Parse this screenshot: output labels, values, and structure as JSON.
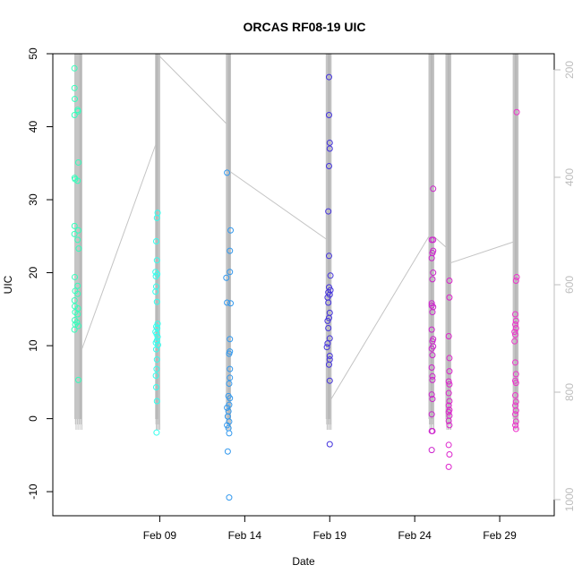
{
  "chart_data": {
    "type": "scatter",
    "title": "ORCAS RF08-19 UIC",
    "xlabel": "Date",
    "ylabel": "UIC",
    "ylim": [
      -13.3,
      50.0
    ],
    "y_ticks": [
      -10,
      0,
      10,
      20,
      30,
      40,
      50
    ],
    "xlim": [
      "2016-02-02T17:00",
      "2016-03-03T05:00"
    ],
    "x_ticks": [
      {
        "date": "2016-02-09",
        "label": "Feb 09"
      },
      {
        "date": "2016-02-14",
        "label": "Feb 14"
      },
      {
        "date": "2016-02-19",
        "label": "Feb 19"
      },
      {
        "date": "2016-02-24",
        "label": "Feb 24"
      },
      {
        "date": "2016-02-29",
        "label": "Feb 29"
      }
    ],
    "right_axis": {
      "label": "",
      "lim": [
        1030,
        170
      ],
      "ticks": [
        200,
        400,
        600,
        800,
        1000
      ],
      "color": "#bdbdbd"
    },
    "grid": false,
    "legend": "none",
    "series": [
      {
        "color": "#33ffbb",
        "flight": {
          "start": "2016-02-04T00:00",
          "end": "2016-02-04T10:00",
          "x_spike": "2016-02-04T08:00"
        },
        "track": [
          [
            "2016-02-04T10:00",
            720
          ],
          [
            "2016-02-08T18:00",
            340
          ]
        ],
        "points": [
          [
            "2016-02-03T23:30",
            48.0
          ],
          [
            "2016-02-03T23:35",
            45.3
          ],
          [
            "2016-02-04T00:00",
            43.8
          ],
          [
            "2016-02-03T23:40",
            41.6
          ],
          [
            "2016-02-04T04:00",
            42.3
          ],
          [
            "2016-02-04T04:30",
            42.1
          ],
          [
            "2016-02-04T05:00",
            35.1
          ],
          [
            "2016-02-03T23:50",
            33.0
          ],
          [
            "2016-02-04T00:30",
            32.8
          ],
          [
            "2016-02-04T04:00",
            32.6
          ],
          [
            "2016-02-03T23:40",
            26.4
          ],
          [
            "2016-02-04T05:00",
            25.8
          ],
          [
            "2016-02-03T23:30",
            25.3
          ],
          [
            "2016-02-04T04:00",
            24.5
          ],
          [
            "2016-02-04T05:30",
            23.3
          ],
          [
            "2016-02-04T00:00",
            19.4
          ],
          [
            "2016-02-04T04:00",
            18.2
          ],
          [
            "2016-02-04T00:30",
            17.5
          ],
          [
            "2016-02-04T04:00",
            17.1
          ],
          [
            "2016-02-03T23:40",
            16.2
          ],
          [
            "2016-02-04T00:00",
            15.4
          ],
          [
            "2016-02-04T04:30",
            15.1
          ],
          [
            "2016-02-04T00:30",
            14.6
          ],
          [
            "2016-02-04T04:00",
            14.3
          ],
          [
            "2016-02-04T00:00",
            13.5
          ],
          [
            "2016-02-04T03:00",
            13.2
          ],
          [
            "2016-02-03T23:30",
            12.2
          ],
          [
            "2016-02-04T05:00",
            12.7
          ],
          [
            "2016-02-04T00:40",
            12.9
          ],
          [
            "2016-02-04T05:00",
            5.3
          ]
        ]
      },
      {
        "color": "#33ffee",
        "flight": {
          "start": "2016-02-08T18:00",
          "end": "2016-02-09T00:00",
          "x_spike": "2016-02-08T20:00"
        },
        "track": [
          [
            "2016-02-09T00:00",
            175
          ],
          [
            "2016-02-12T22:00",
            300
          ]
        ],
        "points": [
          [
            "2016-02-08T21:00",
            28.2
          ],
          [
            "2016-02-08T20:00",
            27.5
          ],
          [
            "2016-02-08T19:00",
            24.3
          ],
          [
            "2016-02-08T20:00",
            21.7
          ],
          [
            "2016-02-08T18:00",
            20.1
          ],
          [
            "2016-02-08T18:30",
            19.5
          ],
          [
            "2016-02-08T20:30",
            19.8
          ],
          [
            "2016-02-08T19:00",
            18.1
          ],
          [
            "2016-02-08T18:00",
            17.4
          ],
          [
            "2016-02-08T20:00",
            16.0
          ],
          [
            "2016-02-08T21:00",
            13.0
          ],
          [
            "2016-02-08T19:00",
            12.6
          ],
          [
            "2016-02-08T20:30",
            12.4
          ],
          [
            "2016-02-08T18:00",
            11.9
          ],
          [
            "2016-02-08T19:30",
            11.6
          ],
          [
            "2016-02-08T21:00",
            11.2
          ],
          [
            "2016-02-08T20:00",
            10.7
          ],
          [
            "2016-02-08T18:30",
            10.4
          ],
          [
            "2016-02-08T21:30",
            10.1
          ],
          [
            "2016-02-08T19:00",
            9.5
          ],
          [
            "2016-02-08T20:00",
            8.1
          ],
          [
            "2016-02-08T19:30",
            6.8
          ],
          [
            "2016-02-08T18:30",
            5.9
          ],
          [
            "2016-02-08T19:00",
            4.3
          ],
          [
            "2016-02-08T20:00",
            2.4
          ],
          [
            "2016-02-08T19:30",
            -1.9
          ]
        ]
      },
      {
        "color": "#3399ee",
        "flight": {
          "start": "2016-02-12T22:00",
          "end": "2016-02-13T04:00",
          "x_spike": "2016-02-13T02:00"
        },
        "track": [
          [
            "2016-02-13T04:00",
            390
          ],
          [
            "2016-02-18T19:00",
            515
          ]
        ],
        "points": [
          [
            "2016-02-12T23:00",
            33.7
          ],
          [
            "2016-02-13T04:00",
            25.8
          ],
          [
            "2016-02-13T03:00",
            23.0
          ],
          [
            "2016-02-13T03:00",
            20.1
          ],
          [
            "2016-02-12T22:00",
            19.3
          ],
          [
            "2016-02-12T23:00",
            15.9
          ],
          [
            "2016-02-13T04:00",
            15.8
          ],
          [
            "2016-02-13T03:00",
            10.9
          ],
          [
            "2016-02-13T03:00",
            9.2
          ],
          [
            "2016-02-13T02:00",
            8.9
          ],
          [
            "2016-02-13T03:00",
            6.8
          ],
          [
            "2016-02-13T03:00",
            5.6
          ],
          [
            "2016-02-13T02:00",
            4.8
          ],
          [
            "2016-02-13T01:00",
            3.1
          ],
          [
            "2016-02-13T03:00",
            2.8
          ],
          [
            "2016-02-13T02:00",
            1.9
          ],
          [
            "2016-02-12T23:00",
            1.5
          ],
          [
            "2016-02-13T01:00",
            1.0
          ],
          [
            "2016-02-13T00:00",
            0.3
          ],
          [
            "2016-02-13T02:00",
            -0.4
          ],
          [
            "2016-02-12T23:00",
            -0.9
          ],
          [
            "2016-02-13T01:00",
            -1.3
          ],
          [
            "2016-02-13T02:00",
            -2.0
          ],
          [
            "2016-02-13T00:00",
            -4.5
          ],
          [
            "2016-02-13T02:00",
            -10.8
          ]
        ]
      },
      {
        "color": "#4433dd",
        "flight": {
          "start": "2016-02-18T19:00",
          "end": "2016-02-19T02:00",
          "x_spike": "2016-02-18T23:00"
        },
        "track": [
          [
            "2016-02-19T01:00",
            815
          ],
          [
            "2016-02-24T20:00",
            510
          ]
        ],
        "points": [
          [
            "2016-02-18T23:00",
            46.8
          ],
          [
            "2016-02-18T23:00",
            41.6
          ],
          [
            "2016-02-19T00:00",
            37.8
          ],
          [
            "2016-02-19T00:00",
            37.0
          ],
          [
            "2016-02-18T23:00",
            34.6
          ],
          [
            "2016-02-18T22:00",
            28.4
          ],
          [
            "2016-02-18T23:00",
            22.3
          ],
          [
            "2016-02-19T01:00",
            19.6
          ],
          [
            "2016-02-18T23:00",
            18.0
          ],
          [
            "2016-02-19T01:00",
            17.6
          ],
          [
            "2016-02-18T22:00",
            17.3
          ],
          [
            "2016-02-19T00:00",
            17.0
          ],
          [
            "2016-02-18T21:00",
            16.6
          ],
          [
            "2016-02-18T22:00",
            15.9
          ],
          [
            "2016-02-19T00:00",
            14.5
          ],
          [
            "2016-02-18T23:00",
            13.8
          ],
          [
            "2016-02-18T21:00",
            13.4
          ],
          [
            "2016-02-18T22:00",
            12.4
          ],
          [
            "2016-02-19T00:00",
            11.0
          ],
          [
            "2016-02-18T21:00",
            10.3
          ],
          [
            "2016-02-18T20:00",
            9.8
          ],
          [
            "2016-02-19T00:00",
            8.6
          ],
          [
            "2016-02-19T00:00",
            8.1
          ],
          [
            "2016-02-18T23:00",
            7.4
          ],
          [
            "2016-02-19T00:00",
            5.2
          ],
          [
            "2016-02-19T00:00",
            -3.5
          ]
        ]
      },
      {
        "color": "#cc22cc",
        "flight": {
          "start": "2016-02-24T20:00",
          "end": "2016-02-25T03:00",
          "x_spike": "2016-02-25T00:00"
        },
        "track": [
          [
            "2016-02-25T03:00",
            510
          ],
          [
            "2016-02-25T20:00",
            530
          ]
        ],
        "points": [
          [
            "2016-02-25T02:00",
            31.5
          ],
          [
            "2016-02-25T00:00",
            24.5
          ],
          [
            "2016-02-25T02:00",
            24.5
          ],
          [
            "2016-02-25T01:00",
            22.7
          ],
          [
            "2016-02-25T00:00",
            22.0
          ],
          [
            "2016-02-25T02:00",
            23.0
          ],
          [
            "2016-02-25T02:00",
            20.0
          ],
          [
            "2016-02-25T01:00",
            19.1
          ],
          [
            "2016-02-25T02:00",
            15.3
          ],
          [
            "2016-02-25T00:00",
            15.5
          ],
          [
            "2016-02-25T00:00",
            15.8
          ],
          [
            "2016-02-25T01:00",
            14.6
          ],
          [
            "2016-02-25T00:00",
            12.2
          ],
          [
            "2016-02-25T02:00",
            10.9
          ],
          [
            "2016-02-25T01:00",
            10.6
          ],
          [
            "2016-02-25T02:00",
            9.9
          ],
          [
            "2016-02-25T00:00",
            9.6
          ],
          [
            "2016-02-25T01:00",
            8.7
          ],
          [
            "2016-02-25T00:00",
            7.0
          ],
          [
            "2016-02-25T01:00",
            5.8
          ],
          [
            "2016-02-25T01:00",
            5.3
          ],
          [
            "2016-02-25T00:00",
            3.3
          ],
          [
            "2016-02-25T01:00",
            2.7
          ],
          [
            "2016-02-25T00:00",
            0.6
          ],
          [
            "2016-02-25T00:00",
            -1.7
          ],
          [
            "2016-02-25T01:00",
            -1.7
          ],
          [
            "2016-02-25T00:00",
            -4.3
          ]
        ]
      },
      {
        "color": "#dd22cc",
        "flight": {
          "start": "2016-02-25T20:00",
          "end": "2016-02-26T03:00",
          "x_spike": "2016-02-26T00:00"
        },
        "track": [
          [
            "2016-02-26T01:00",
            560
          ],
          [
            "2016-02-29T20:00",
            520
          ]
        ],
        "points": [
          [
            "2016-02-26T01:00",
            18.9
          ],
          [
            "2016-02-26T01:00",
            16.6
          ],
          [
            "2016-02-26T00:00",
            11.3
          ],
          [
            "2016-02-26T01:00",
            8.3
          ],
          [
            "2016-02-26T01:00",
            6.5
          ],
          [
            "2016-02-26T00:00",
            5.1
          ],
          [
            "2016-02-26T01:00",
            4.7
          ],
          [
            "2016-02-26T00:00",
            3.5
          ],
          [
            "2016-02-26T01:00",
            2.4
          ],
          [
            "2016-02-26T00:00",
            1.8
          ],
          [
            "2016-02-26T01:00",
            1.2
          ],
          [
            "2016-02-26T00:00",
            0.9
          ],
          [
            "2016-02-26T01:00",
            0.4
          ],
          [
            "2016-02-26T00:00",
            -0.3
          ],
          [
            "2016-02-26T01:00",
            -0.9
          ],
          [
            "2016-02-26T00:00",
            -3.6
          ],
          [
            "2016-02-26T01:00",
            -4.9
          ],
          [
            "2016-02-26T00:00",
            -6.6
          ]
        ]
      },
      {
        "color": "#ee33cc",
        "flight": {
          "start": "2016-02-29T19:00",
          "end": "2016-03-01T02:00",
          "x_spike": "2016-02-29T23:00"
        },
        "track": [],
        "points": [
          [
            "2016-03-01T00:00",
            42.0
          ],
          [
            "2016-03-01T00:00",
            19.4
          ],
          [
            "2016-02-29T23:00",
            18.9
          ],
          [
            "2016-02-29T22:00",
            14.3
          ],
          [
            "2016-02-29T23:00",
            13.4
          ],
          [
            "2016-02-29T22:00",
            12.9
          ],
          [
            "2016-02-29T23:00",
            12.4
          ],
          [
            "2016-02-29T21:00",
            11.9
          ],
          [
            "2016-02-29T22:00",
            11.5
          ],
          [
            "2016-02-29T21:00",
            10.6
          ],
          [
            "2016-02-29T22:00",
            7.7
          ],
          [
            "2016-02-29T23:00",
            6.1
          ],
          [
            "2016-02-29T22:00",
            5.2
          ],
          [
            "2016-02-29T23:00",
            4.9
          ],
          [
            "2016-02-29T22:00",
            3.2
          ],
          [
            "2016-02-29T23:00",
            2.3
          ],
          [
            "2016-02-29T22:00",
            1.8
          ],
          [
            "2016-02-29T23:00",
            1.1
          ],
          [
            "2016-02-29T22:00",
            0.6
          ],
          [
            "2016-02-29T23:00",
            -0.4
          ],
          [
            "2016-02-29T22:00",
            -0.9
          ],
          [
            "2016-02-29T23:00",
            -1.4
          ]
        ]
      }
    ]
  }
}
